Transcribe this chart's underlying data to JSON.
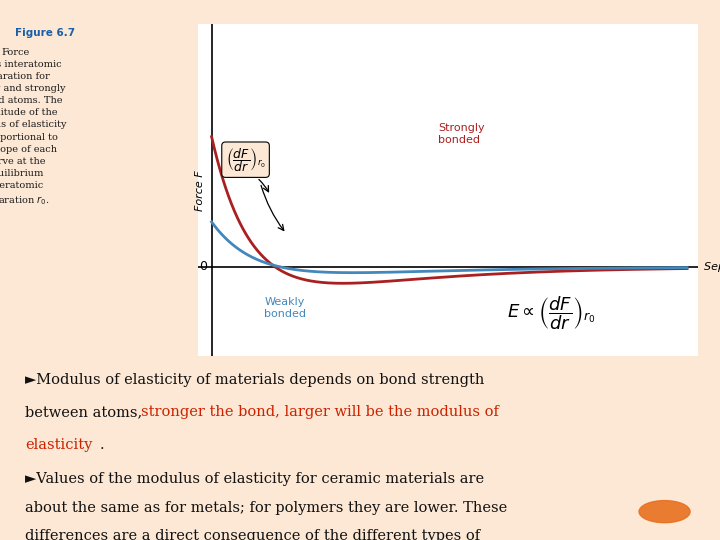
{
  "bg_color": "#fce8d5",
  "plot_bg": "#ffffff",
  "fig_width": 7.2,
  "fig_height": 5.4,
  "strongly_bonded_color": "#aa2020",
  "weakly_bonded_color": "#4488bb",
  "axis_color": "#000000",
  "separation_label": "Separation r",
  "force_label": "Force F",
  "strongly_label": "Strongly\nbonded",
  "weakly_label": "Weakly\nbonded",
  "formula_text": "$E \\propto \\left(\\dfrac{dF}{dr}\\right)_{r_0}$",
  "slope_annotation": "$\\left(\\dfrac{dF}{dr}\\right)_{r_0}$",
  "highlight_color": "#e87020",
  "text_color_red": "#cc2200",
  "text_color_black": "#111111",
  "caption_color": "#1a1a1a",
  "fig67_color": "#1a5fa8"
}
